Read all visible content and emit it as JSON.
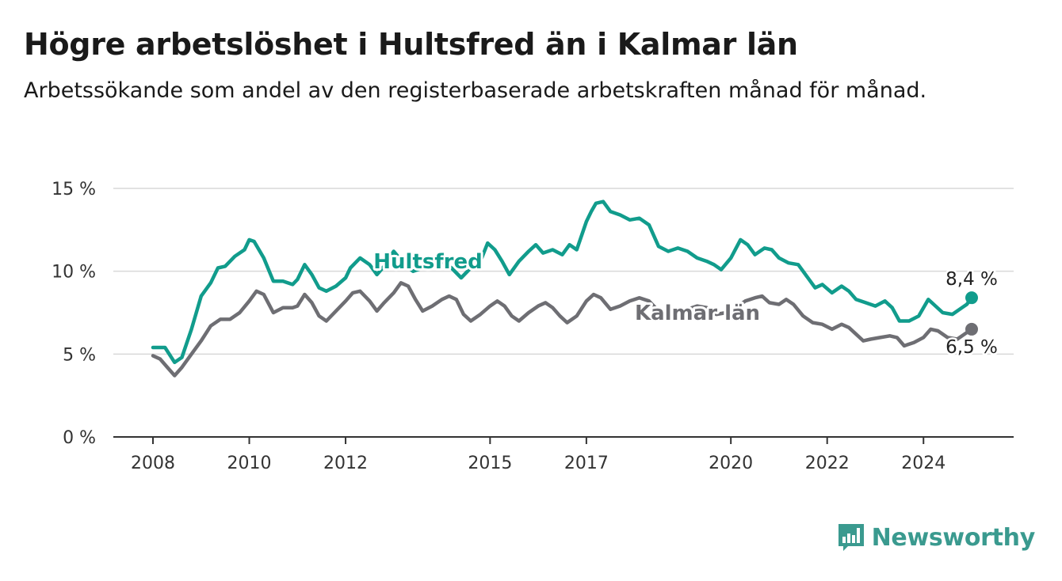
{
  "header": {
    "title": "Högre arbetslöshet i Hultsfred än i Kalmar län",
    "subtitle": "Arbetssökande som andel av den registerbaserade arbetskraften månad för månad."
  },
  "brand": {
    "name": "Newsworthy",
    "color": "#3a9a8f",
    "icon": "bar-chart-logo-icon"
  },
  "chart_data": {
    "type": "line",
    "ylim": [
      0,
      15
    ],
    "xlim": [
      2008.0,
      2025.5
    ],
    "y_ticks": [
      {
        "value": 0,
        "label": "0 %"
      },
      {
        "value": 5,
        "label": "5 %"
      },
      {
        "value": 10,
        "label": "10 %"
      },
      {
        "value": 15,
        "label": "15 %"
      }
    ],
    "x_ticks": [
      {
        "value": 2008,
        "label": "2008"
      },
      {
        "value": 2010,
        "label": "2010"
      },
      {
        "value": 2012,
        "label": "2012"
      },
      {
        "value": 2015,
        "label": "2015"
      },
      {
        "value": 2017,
        "label": "2017"
      },
      {
        "value": 2020,
        "label": "2020"
      },
      {
        "value": 2022,
        "label": "2022"
      },
      {
        "value": 2024,
        "label": "2024"
      }
    ],
    "grid": true,
    "series": [
      {
        "name": "Hultsfred",
        "color": "#119c8c",
        "end_label": "8,4 %",
        "points": [
          [
            2008.0,
            5.4
          ],
          [
            2008.25,
            5.4
          ],
          [
            2008.45,
            4.5
          ],
          [
            2008.6,
            4.8
          ],
          [
            2008.8,
            6.5
          ],
          [
            2009.0,
            8.5
          ],
          [
            2009.2,
            9.3
          ],
          [
            2009.35,
            10.2
          ],
          [
            2009.5,
            10.3
          ],
          [
            2009.7,
            10.9
          ],
          [
            2009.9,
            11.3
          ],
          [
            2010.0,
            11.9
          ],
          [
            2010.1,
            11.8
          ],
          [
            2010.3,
            10.8
          ],
          [
            2010.5,
            9.4
          ],
          [
            2010.7,
            9.4
          ],
          [
            2010.9,
            9.2
          ],
          [
            2011.0,
            9.5
          ],
          [
            2011.15,
            10.4
          ],
          [
            2011.3,
            9.8
          ],
          [
            2011.45,
            9.0
          ],
          [
            2011.6,
            8.8
          ],
          [
            2011.8,
            9.1
          ],
          [
            2012.0,
            9.6
          ],
          [
            2012.1,
            10.2
          ],
          [
            2012.3,
            10.8
          ],
          [
            2012.5,
            10.4
          ],
          [
            2012.65,
            9.8
          ],
          [
            2012.8,
            10.3
          ],
          [
            2013.0,
            11.2
          ],
          [
            2013.2,
            10.5
          ],
          [
            2013.4,
            10.0
          ],
          [
            2013.6,
            10.2
          ],
          [
            2013.8,
            10.4
          ],
          [
            2014.0,
            10.6
          ],
          [
            2014.2,
            10.2
          ],
          [
            2014.4,
            9.6
          ],
          [
            2014.6,
            10.2
          ],
          [
            2014.8,
            10.6
          ],
          [
            2014.95,
            11.7
          ],
          [
            2015.1,
            11.3
          ],
          [
            2015.25,
            10.6
          ],
          [
            2015.4,
            9.8
          ],
          [
            2015.6,
            10.6
          ],
          [
            2015.8,
            11.2
          ],
          [
            2015.95,
            11.6
          ],
          [
            2016.1,
            11.1
          ],
          [
            2016.3,
            11.3
          ],
          [
            2016.5,
            11.0
          ],
          [
            2016.65,
            11.6
          ],
          [
            2016.8,
            11.3
          ],
          [
            2017.0,
            13.0
          ],
          [
            2017.1,
            13.6
          ],
          [
            2017.2,
            14.1
          ],
          [
            2017.35,
            14.2
          ],
          [
            2017.5,
            13.6
          ],
          [
            2017.7,
            13.4
          ],
          [
            2017.9,
            13.1
          ],
          [
            2018.1,
            13.2
          ],
          [
            2018.3,
            12.8
          ],
          [
            2018.5,
            11.5
          ],
          [
            2018.7,
            11.2
          ],
          [
            2018.9,
            11.4
          ],
          [
            2019.1,
            11.2
          ],
          [
            2019.3,
            10.8
          ],
          [
            2019.5,
            10.6
          ],
          [
            2019.65,
            10.4
          ],
          [
            2019.8,
            10.1
          ],
          [
            2020.0,
            10.8
          ],
          [
            2020.2,
            11.9
          ],
          [
            2020.35,
            11.6
          ],
          [
            2020.5,
            11.0
          ],
          [
            2020.7,
            11.4
          ],
          [
            2020.85,
            11.3
          ],
          [
            2021.0,
            10.8
          ],
          [
            2021.2,
            10.5
          ],
          [
            2021.4,
            10.4
          ],
          [
            2021.55,
            9.8
          ],
          [
            2021.75,
            9.0
          ],
          [
            2021.9,
            9.2
          ],
          [
            2022.1,
            8.7
          ],
          [
            2022.3,
            9.1
          ],
          [
            2022.45,
            8.8
          ],
          [
            2022.6,
            8.3
          ],
          [
            2022.8,
            8.1
          ],
          [
            2023.0,
            7.9
          ],
          [
            2023.2,
            8.2
          ],
          [
            2023.35,
            7.8
          ],
          [
            2023.5,
            7.0
          ],
          [
            2023.7,
            7.0
          ],
          [
            2023.9,
            7.3
          ],
          [
            2024.1,
            8.3
          ],
          [
            2024.25,
            7.9
          ],
          [
            2024.4,
            7.5
          ],
          [
            2024.6,
            7.4
          ],
          [
            2024.8,
            7.8
          ],
          [
            2024.9,
            8.0
          ],
          [
            2025.0,
            8.4
          ]
        ]
      },
      {
        "name": "Kalmar län",
        "color": "#6e6e73",
        "end_label": "6,5 %",
        "points": [
          [
            2008.0,
            4.9
          ],
          [
            2008.15,
            4.7
          ],
          [
            2008.3,
            4.2
          ],
          [
            2008.45,
            3.7
          ],
          [
            2008.6,
            4.2
          ],
          [
            2008.8,
            5.0
          ],
          [
            2009.0,
            5.8
          ],
          [
            2009.2,
            6.7
          ],
          [
            2009.4,
            7.1
          ],
          [
            2009.6,
            7.1
          ],
          [
            2009.8,
            7.5
          ],
          [
            2010.0,
            8.2
          ],
          [
            2010.15,
            8.8
          ],
          [
            2010.3,
            8.6
          ],
          [
            2010.5,
            7.5
          ],
          [
            2010.7,
            7.8
          ],
          [
            2010.9,
            7.8
          ],
          [
            2011.0,
            7.9
          ],
          [
            2011.15,
            8.6
          ],
          [
            2011.3,
            8.1
          ],
          [
            2011.45,
            7.3
          ],
          [
            2011.6,
            7.0
          ],
          [
            2011.8,
            7.6
          ],
          [
            2012.0,
            8.2
          ],
          [
            2012.15,
            8.7
          ],
          [
            2012.3,
            8.8
          ],
          [
            2012.5,
            8.2
          ],
          [
            2012.65,
            7.6
          ],
          [
            2012.8,
            8.1
          ],
          [
            2013.0,
            8.7
          ],
          [
            2013.15,
            9.3
          ],
          [
            2013.3,
            9.1
          ],
          [
            2013.45,
            8.3
          ],
          [
            2013.6,
            7.6
          ],
          [
            2013.8,
            7.9
          ],
          [
            2014.0,
            8.3
          ],
          [
            2014.15,
            8.5
          ],
          [
            2014.3,
            8.3
          ],
          [
            2014.45,
            7.4
          ],
          [
            2014.6,
            7.0
          ],
          [
            2014.8,
            7.4
          ],
          [
            2015.0,
            7.9
          ],
          [
            2015.15,
            8.2
          ],
          [
            2015.3,
            7.9
          ],
          [
            2015.45,
            7.3
          ],
          [
            2015.6,
            7.0
          ],
          [
            2015.8,
            7.5
          ],
          [
            2016.0,
            7.9
          ],
          [
            2016.15,
            8.1
          ],
          [
            2016.3,
            7.8
          ],
          [
            2016.45,
            7.3
          ],
          [
            2016.6,
            6.9
          ],
          [
            2016.8,
            7.3
          ],
          [
            2017.0,
            8.2
          ],
          [
            2017.15,
            8.6
          ],
          [
            2017.3,
            8.4
          ],
          [
            2017.5,
            7.7
          ],
          [
            2017.7,
            7.9
          ],
          [
            2017.9,
            8.2
          ],
          [
            2018.1,
            8.4
          ],
          [
            2018.3,
            8.2
          ],
          [
            2018.5,
            7.6
          ],
          [
            2018.7,
            7.3
          ],
          [
            2018.9,
            7.5
          ],
          [
            2019.1,
            7.7
          ],
          [
            2019.3,
            7.9
          ],
          [
            2019.5,
            7.8
          ],
          [
            2019.7,
            7.4
          ],
          [
            2019.9,
            7.5
          ],
          [
            2020.1,
            7.8
          ],
          [
            2020.3,
            8.2
          ],
          [
            2020.5,
            8.4
          ],
          [
            2020.65,
            8.5
          ],
          [
            2020.8,
            8.1
          ],
          [
            2021.0,
            8.0
          ],
          [
            2021.15,
            8.3
          ],
          [
            2021.3,
            8.0
          ],
          [
            2021.5,
            7.3
          ],
          [
            2021.7,
            6.9
          ],
          [
            2021.9,
            6.8
          ],
          [
            2022.1,
            6.5
          ],
          [
            2022.3,
            6.8
          ],
          [
            2022.45,
            6.6
          ],
          [
            2022.6,
            6.2
          ],
          [
            2022.75,
            5.8
          ],
          [
            2022.9,
            5.9
          ],
          [
            2023.1,
            6.0
          ],
          [
            2023.3,
            6.1
          ],
          [
            2023.45,
            6.0
          ],
          [
            2023.6,
            5.5
          ],
          [
            2023.8,
            5.7
          ],
          [
            2024.0,
            6.0
          ],
          [
            2024.15,
            6.5
          ],
          [
            2024.3,
            6.4
          ],
          [
            2024.5,
            6.0
          ],
          [
            2024.7,
            5.9
          ],
          [
            2024.85,
            6.2
          ],
          [
            2025.0,
            6.5
          ]
        ]
      }
    ]
  }
}
